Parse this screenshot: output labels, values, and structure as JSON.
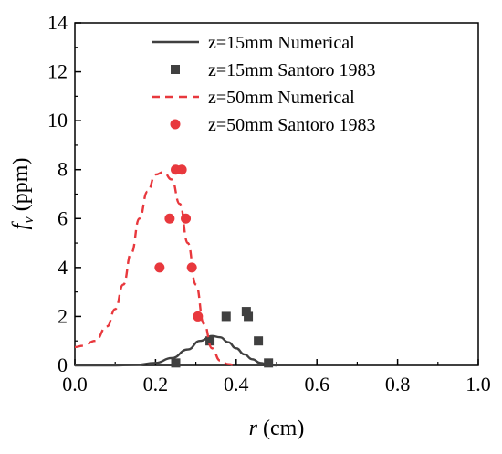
{
  "chart_data": {
    "type": "line",
    "xlabel_var": "r",
    "xlabel_unit": " (cm)",
    "ylabel_var": "f",
    "ylabel_sub": "v",
    "ylabel_unit": " (ppm)",
    "xlim": [
      0.0,
      1.0
    ],
    "ylim": [
      0,
      14
    ],
    "xticks": [
      0.0,
      0.2,
      0.4,
      0.6,
      0.8,
      1.0
    ],
    "xtick_labels": [
      "0.0",
      "0.2",
      "0.4",
      "0.6",
      "0.8",
      "1.0"
    ],
    "yticks": [
      0,
      2,
      4,
      6,
      8,
      10,
      12,
      14
    ],
    "ytick_labels": [
      "0",
      "2",
      "4",
      "6",
      "8",
      "10",
      "12",
      "14"
    ],
    "grid": false,
    "legend_position": "top-right",
    "series": [
      {
        "name": "z=15mm Numerical",
        "kind": "line",
        "style": "solid",
        "color": "#404040",
        "x": [
          0.0,
          0.05,
          0.1,
          0.15,
          0.2,
          0.24,
          0.28,
          0.31,
          0.34,
          0.36,
          0.38,
          0.4,
          0.42,
          0.44,
          0.46,
          0.48,
          0.5
        ],
        "y": [
          0.0,
          0.0,
          0.0,
          0.02,
          0.1,
          0.3,
          0.65,
          1.0,
          1.2,
          1.15,
          0.95,
          0.7,
          0.45,
          0.25,
          0.1,
          0.03,
          0.0
        ]
      },
      {
        "name": "z=15mm Santoro 1983",
        "kind": "scatter",
        "marker": "square",
        "color": "#404040",
        "x": [
          0.25,
          0.335,
          0.375,
          0.425,
          0.43,
          0.455,
          0.48
        ],
        "y": [
          0.1,
          1.0,
          2.0,
          2.2,
          2.0,
          1.0,
          0.1
        ]
      },
      {
        "name": "z=50mm Numerical",
        "kind": "line",
        "style": "dashed",
        "color": "#e8383d",
        "x": [
          0.0,
          0.02,
          0.05,
          0.08,
          0.1,
          0.12,
          0.14,
          0.16,
          0.18,
          0.2,
          0.22,
          0.24,
          0.26,
          0.28,
          0.3,
          0.32,
          0.34,
          0.36,
          0.38,
          0.4
        ],
        "y": [
          0.75,
          0.8,
          1.0,
          1.6,
          2.3,
          3.3,
          4.6,
          6.0,
          7.1,
          7.8,
          7.9,
          7.6,
          6.6,
          5.0,
          3.3,
          1.7,
          0.7,
          0.2,
          0.05,
          0.0
        ]
      },
      {
        "name": "z=50mm Santoro 1983",
        "kind": "scatter",
        "marker": "circle",
        "color": "#e8383d",
        "x": [
          0.21,
          0.235,
          0.25,
          0.265,
          0.275,
          0.29,
          0.305
        ],
        "y": [
          4.0,
          6.0,
          8.0,
          8.0,
          6.0,
          4.0,
          2.0
        ]
      }
    ]
  }
}
